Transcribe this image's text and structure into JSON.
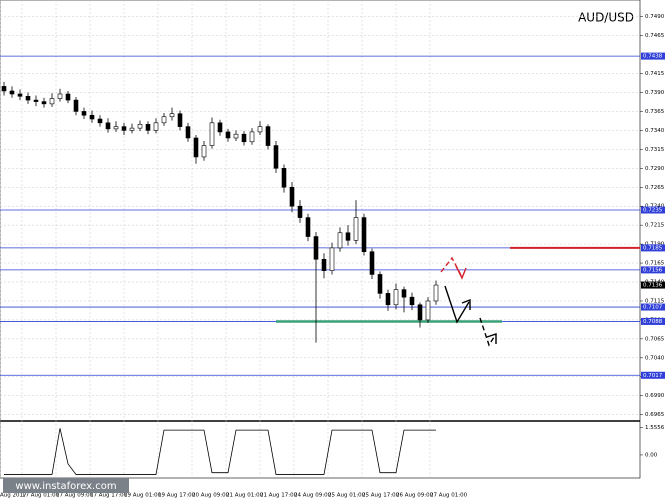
{
  "chart_data": [
    {
      "type": "candlestick",
      "title": "AUD/USD",
      "watermark": "www.instaforex.com",
      "open": [
        0.7398,
        0.7392,
        0.7388,
        0.7385,
        0.738,
        0.7378,
        0.7375,
        0.7382,
        0.7388,
        0.738,
        0.7365,
        0.736,
        0.7355,
        0.735,
        0.7342,
        0.7345,
        0.734,
        0.7343,
        0.7348,
        0.734,
        0.735,
        0.7358,
        0.7362,
        0.7345,
        0.733,
        0.7305,
        0.732,
        0.735,
        0.7338,
        0.733,
        0.7335,
        0.7325,
        0.7338,
        0.7345,
        0.732,
        0.729,
        0.7265,
        0.724,
        0.7225,
        0.72,
        0.717,
        0.7155,
        0.7185,
        0.7205,
        0.7195,
        0.7225,
        0.718,
        0.715,
        0.7125,
        0.711,
        0.713,
        0.712,
        0.711,
        0.709,
        0.7115
      ],
      "high": [
        0.7404,
        0.7398,
        0.7394,
        0.739,
        0.7386,
        0.7383,
        0.7389,
        0.7395,
        0.7392,
        0.7384,
        0.737,
        0.7366,
        0.736,
        0.7356,
        0.7352,
        0.735,
        0.7349,
        0.7353,
        0.7352,
        0.7356,
        0.7363,
        0.737,
        0.7366,
        0.735,
        0.7334,
        0.7326,
        0.7357,
        0.7354,
        0.7342,
        0.734,
        0.7339,
        0.7343,
        0.7352,
        0.7348,
        0.7326,
        0.7295,
        0.7272,
        0.7248,
        0.723,
        0.7206,
        0.7178,
        0.7192,
        0.7212,
        0.7215,
        0.7248,
        0.723,
        0.7184,
        0.7154,
        0.713,
        0.7138,
        0.7134,
        0.7126,
        0.7113,
        0.712,
        0.7142
      ],
      "low": [
        0.7386,
        0.7383,
        0.738,
        0.7375,
        0.7372,
        0.737,
        0.7371,
        0.7378,
        0.7376,
        0.736,
        0.7355,
        0.735,
        0.7345,
        0.7337,
        0.7338,
        0.7334,
        0.7336,
        0.7339,
        0.7335,
        0.7336,
        0.7346,
        0.7353,
        0.734,
        0.7325,
        0.7296,
        0.73,
        0.7316,
        0.7333,
        0.7325,
        0.7326,
        0.732,
        0.7321,
        0.7334,
        0.7315,
        0.7284,
        0.7258,
        0.7232,
        0.7218,
        0.7194,
        0.706,
        0.7145,
        0.715,
        0.718,
        0.7188,
        0.719,
        0.7175,
        0.7144,
        0.7118,
        0.7102,
        0.7104,
        0.71,
        0.7103,
        0.708,
        0.7086,
        0.711
      ],
      "close": [
        0.7392,
        0.7388,
        0.7385,
        0.738,
        0.7378,
        0.7375,
        0.7382,
        0.7388,
        0.738,
        0.7365,
        0.736,
        0.7355,
        0.735,
        0.7342,
        0.7345,
        0.734,
        0.7343,
        0.7348,
        0.734,
        0.735,
        0.7358,
        0.7362,
        0.7345,
        0.733,
        0.7305,
        0.732,
        0.735,
        0.7338,
        0.733,
        0.7335,
        0.7325,
        0.7338,
        0.7345,
        0.732,
        0.729,
        0.7265,
        0.724,
        0.7225,
        0.72,
        0.717,
        0.7155,
        0.7185,
        0.7205,
        0.7195,
        0.7225,
        0.718,
        0.715,
        0.7125,
        0.711,
        0.713,
        0.712,
        0.711,
        0.709,
        0.7115,
        0.7136
      ],
      "ylim": [
        0.6958,
        0.7512
      ],
      "yticks": [
        {
          "value": 0.749,
          "label": "0.7490"
        },
        0.7465,
        0.7415,
        {
          "value": 0.739,
          "label": "0.7390"
        },
        0.7365,
        {
          "value": 0.734,
          "label": "0.7340"
        },
        0.7315,
        {
          "value": 0.729,
          "label": "0.7290"
        },
        0.7265,
        {
          "value": 0.724,
          "label": "0.7240"
        },
        0.7215,
        {
          "value": 0.719,
          "label": "0.7190"
        },
        0.7165,
        {
          "value": 0.714,
          "label": "0.7140"
        },
        0.7115,
        {
          "value": 0.709,
          "label": "0.7090"
        },
        0.7065,
        {
          "value": 0.704,
          "label": "0.7040"
        },
        0.7015,
        {
          "value": 0.699,
          "label": "0.6990"
        },
        0.6965
      ],
      "levels": [
        0.7438,
        0.7235,
        0.7185,
        0.7156,
        0.7107,
        0.7088,
        0.7017
      ],
      "level_color": "#2f3fd8",
      "resistance": 0.7185,
      "resistance_color": "#d4202a",
      "support": 0.7088,
      "support_color": "#3aa17a",
      "xlim": [
        -0.5,
        79.5
      ],
      "xticks": [
        {
          "value": -0.5,
          "label": "Aug 2017"
        },
        {
          "value": 2.25,
          "label": "17 Aug 01:00"
        },
        {
          "value": 6.5,
          "label": "17 Aug 09:00"
        },
        {
          "value": 10.75,
          "label": "17 Aug 17:00"
        },
        {
          "value": 15,
          "label": "19 Aug 01:00"
        },
        {
          "value": 19.25,
          "label": "19 Aug 17:00"
        },
        {
          "value": 23.5,
          "label": "20 Aug 09:00"
        },
        {
          "value": 27.75,
          "label": "21 Aug 01:00"
        },
        {
          "value": 32,
          "label": "21 Aug 17:00"
        },
        {
          "value": 36.25,
          "label": "24 Aug 09:00"
        },
        {
          "value": 40.5,
          "label": "25 Aug 01:00"
        },
        {
          "value": 44.75,
          "label": "25 Aug 17:00"
        },
        {
          "value": 49,
          "label": "26 Aug 09:00"
        },
        {
          "value": 53.25,
          "label": "27 Aug 01:00"
        }
      ],
      "grid": true
    },
    {
      "type": "line",
      "color": "#000000",
      "values": [
        -1.1,
        -1.1,
        -1.1,
        -1.1,
        -1.1,
        -1.1,
        -1.1,
        1.5,
        -0.5,
        -1.1,
        -1.1,
        -1.1,
        -1.1,
        -1.1,
        -1.1,
        -1.1,
        -1.1,
        -1.1,
        -1.1,
        -1.1,
        1.4,
        1.4,
        1.4,
        1.4,
        1.4,
        1.4,
        -1.0,
        -1.0,
        -1.0,
        1.4,
        1.4,
        1.4,
        1.4,
        1.4,
        -1.1,
        -1.1,
        -1.1,
        -1.1,
        -1.1,
        -1.1,
        -1.1,
        1.4,
        1.4,
        1.4,
        1.4,
        1.4,
        1.4,
        -1.0,
        -1.0,
        -1.0,
        1.4,
        1.4,
        1.4,
        1.4,
        1.4
      ],
      "ylim": [
        -1.3,
        1.8
      ],
      "yticks": [
        1.5556,
        {
          "value": 0,
          "label": "0.00"
        }
      ]
    }
  ]
}
